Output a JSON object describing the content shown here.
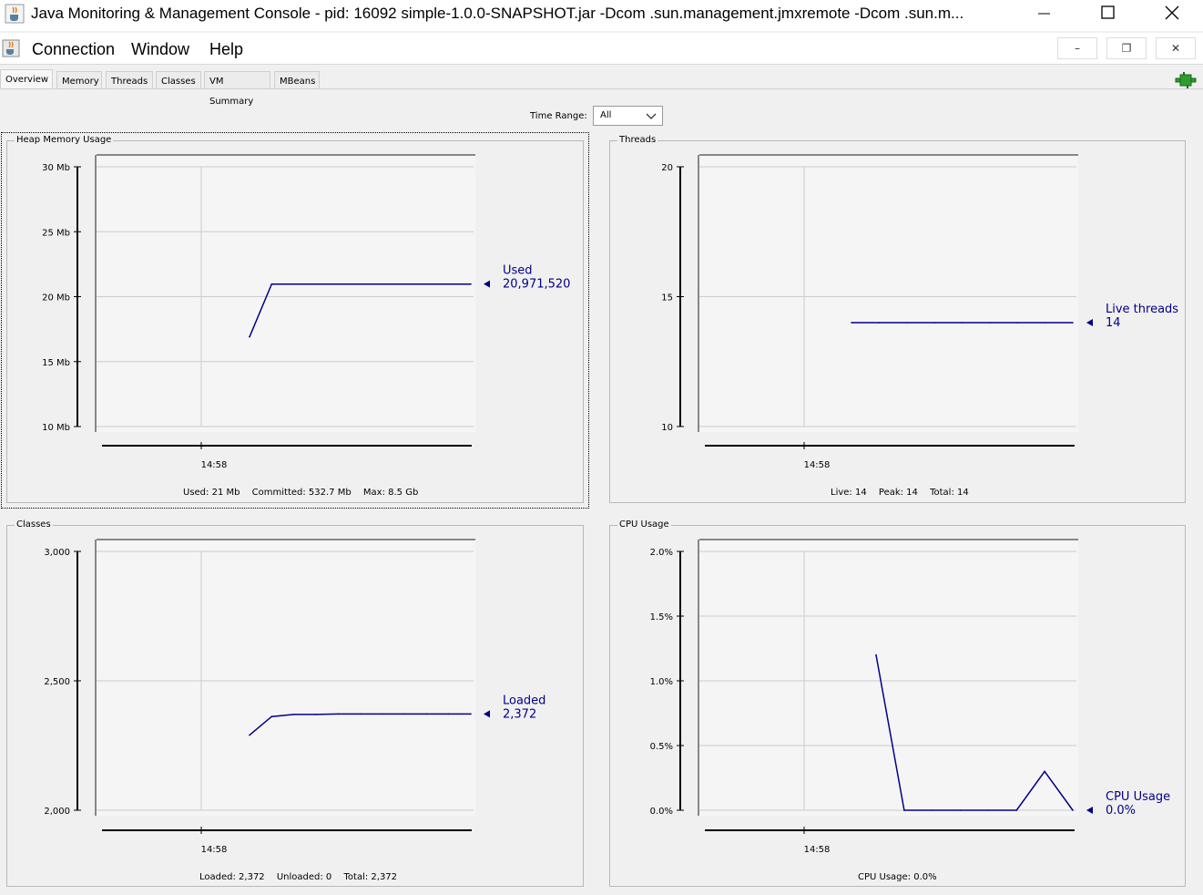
{
  "window": {
    "title": "Java Monitoring & Management Console - pid: 16092 simple-1.0.0-SNAPSHOT.jar -Dcom .sun.management.jmxremote -Dcom .sun.m...",
    "minimize_icon": "minimize-icon",
    "maximize_icon": "maximize-icon",
    "close_icon": "close-icon"
  },
  "menu": {
    "items": [
      "Connection",
      "Window",
      "Help"
    ],
    "inner_buttons": [
      "–",
      "❐",
      "✕"
    ]
  },
  "tabs": [
    {
      "label": "Overview",
      "active": true
    },
    {
      "label": "Memory",
      "active": false
    },
    {
      "label": "Threads",
      "active": false
    },
    {
      "label": "Classes",
      "active": false
    },
    {
      "label": "VM Summary",
      "active": false
    },
    {
      "label": "MBeans",
      "active": false
    }
  ],
  "time_range": {
    "label": "Time Range:",
    "value": "All"
  },
  "colors": {
    "series": "#00008b",
    "grid": "#cccccc",
    "axis": "#000000"
  },
  "chart_data": [
    {
      "type": "line",
      "title": "Heap Memory Usage",
      "yticks": [
        "30 Mb",
        "25 Mb",
        "20 Mb",
        "15 Mb",
        "10 Mb"
      ],
      "ylim": [
        10,
        30
      ],
      "xticks": [
        "14:58"
      ],
      "series": [
        {
          "name": "Used",
          "values": [
            16.9,
            20.97,
            20.97,
            20.97,
            20.97,
            20.97,
            20.97,
            20.97,
            20.97,
            20.97,
            20.97
          ]
        }
      ],
      "legend_name": "Used",
      "legend_value": "20,971,520",
      "stats": [
        "Used: 21 Mb",
        "Committed: 532.7 Mb",
        "Max: 8.5 Gb"
      ]
    },
    {
      "type": "line",
      "title": "Threads",
      "yticks": [
        "20",
        "15",
        "10"
      ],
      "ylim": [
        10,
        20
      ],
      "xticks": [
        "14:58"
      ],
      "series": [
        {
          "name": "Live threads",
          "values": [
            14,
            14,
            14,
            14,
            14,
            14,
            14,
            14,
            14
          ]
        }
      ],
      "legend_name": "Live threads",
      "legend_value": "14",
      "stats": [
        "Live: 14",
        "Peak: 14",
        "Total: 14"
      ]
    },
    {
      "type": "line",
      "title": "Classes",
      "yticks": [
        "3,000",
        "2,500",
        "2,000"
      ],
      "ylim": [
        2000,
        3000
      ],
      "xticks": [
        "14:58"
      ],
      "series": [
        {
          "name": "Loaded",
          "values": [
            2290,
            2362,
            2370,
            2370,
            2372,
            2372,
            2372,
            2372,
            2372,
            2372,
            2372
          ]
        }
      ],
      "legend_name": "Loaded",
      "legend_value": "2,372",
      "stats": [
        "Loaded: 2,372",
        "Unloaded: 0",
        "Total: 2,372"
      ]
    },
    {
      "type": "line",
      "title": "CPU Usage",
      "yticks": [
        "2.0%",
        "1.5%",
        "1.0%",
        "0.5%",
        "0.0%"
      ],
      "ylim": [
        0,
        2
      ],
      "xticks": [
        "14:58"
      ],
      "series": [
        {
          "name": "CPU Usage",
          "values": [
            1.2,
            0.0,
            0.0,
            0.0,
            0.0,
            0.0,
            0.3,
            0.0
          ]
        }
      ],
      "legend_name": "CPU Usage",
      "legend_value": "0.0%",
      "stats": [
        "CPU Usage: 0.0%"
      ]
    }
  ]
}
